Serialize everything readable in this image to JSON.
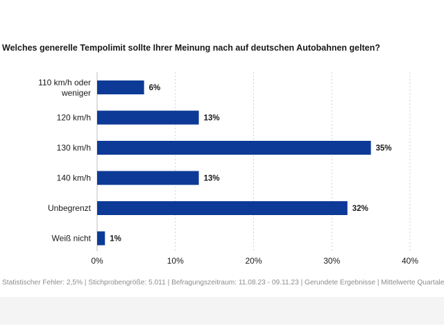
{
  "chart_data": {
    "type": "bar",
    "orientation": "horizontal",
    "title": "Welches generelle Tempolimit sollte Ihrer Meinung nach auf deutschen Autobahnen gelten?",
    "categories": [
      "110 km/h oder weniger",
      "120 km/h",
      "130 km/h",
      "140 km/h",
      "Unbegrenzt",
      "Weiß nicht"
    ],
    "values": [
      6,
      13,
      35,
      13,
      32,
      1
    ],
    "value_labels": [
      "6%",
      "13%",
      "35%",
      "13%",
      "32%",
      "1%"
    ],
    "xlim": [
      0,
      40
    ],
    "x_ticks": [
      0,
      10,
      20,
      30,
      40
    ],
    "x_tick_labels": [
      "0%",
      "10%",
      "20%",
      "30%",
      "40%"
    ],
    "grid": "vertical dashed",
    "bar_color": "#0d3a96"
  },
  "footnote": "Statistischer Fehler: 2,5% | Stichprobengröße: 5.011 | Befragungszeitraum: 11.08.23 - 09.11.23 | Gerundete Ergebnisse | Mittelwerte Quartale"
}
